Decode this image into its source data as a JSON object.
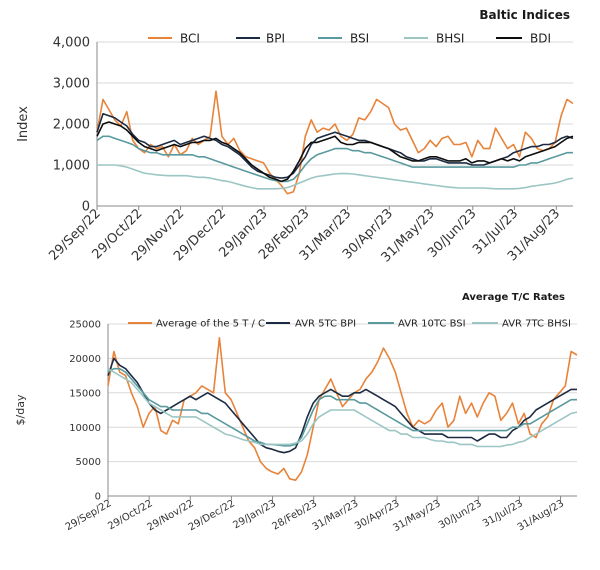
{
  "chart_data": [
    {
      "type": "line",
      "title": "Baltic Indices",
      "ylabel": "Index",
      "xlabel": "",
      "ylim": [
        0,
        4000
      ],
      "y_ticks": [
        "0",
        "1,000",
        "2,000",
        "3,000",
        "4,000"
      ],
      "x_ticks": [
        "29/Sep/22",
        "29/Oct/22",
        "29/Nov/22",
        "29/Dec/22",
        "29/Jan/23",
        "28/Feb/23",
        "31/Mar/23",
        "30/Apr/23",
        "31/May/23",
        "30/Jun/23",
        "31/Jul/23",
        "31/Aug/23"
      ],
      "grid": true,
      "legend_position": "top",
      "series": [
        {
          "name": "BCI",
          "color": "#e8833a",
          "values": [
            1800,
            2600,
            2350,
            2100,
            1950,
            2300,
            1600,
            1400,
            1300,
            1500,
            1400,
            1450,
            1200,
            1500,
            1250,
            1350,
            1650,
            1500,
            1600,
            1700,
            2800,
            1700,
            1500,
            1650,
            1350,
            1200,
            1150,
            1100,
            1050,
            800,
            650,
            500,
            300,
            350,
            800,
            1700,
            2100,
            1800,
            1900,
            1850,
            2000,
            1700,
            1600,
            1750,
            2150,
            2100,
            2300,
            2600,
            2500,
            2400,
            2000,
            1850,
            1900,
            1600,
            1300,
            1400,
            1600,
            1450,
            1650,
            1700,
            1500,
            1500,
            1550,
            1200,
            1600,
            1400,
            1400,
            1900,
            1650,
            1400,
            1500,
            1200,
            1800,
            1650,
            1400,
            1350,
            1400,
            1550,
            2200,
            2600,
            2500
          ]
        },
        {
          "name": "BPI",
          "color": "#1c2b42",
          "values": [
            1800,
            2250,
            2200,
            2150,
            2050,
            1950,
            1750,
            1600,
            1550,
            1450,
            1450,
            1500,
            1550,
            1600,
            1500,
            1550,
            1600,
            1650,
            1700,
            1650,
            1600,
            1500,
            1450,
            1350,
            1250,
            1100,
            950,
            850,
            800,
            750,
            700,
            680,
            700,
            800,
            1000,
            1200,
            1500,
            1650,
            1700,
            1750,
            1800,
            1750,
            1700,
            1650,
            1600,
            1600,
            1550,
            1500,
            1450,
            1400,
            1350,
            1300,
            1200,
            1150,
            1100,
            1100,
            1150,
            1150,
            1100,
            1050,
            1050,
            1050,
            1050,
            1000,
            1000,
            1000,
            1050,
            1100,
            1150,
            1200,
            1300,
            1350,
            1400,
            1450,
            1450,
            1500,
            1500,
            1550,
            1650,
            1700,
            1650
          ]
        },
        {
          "name": "BSI",
          "color": "#5a9a9e",
          "values": [
            1600,
            1700,
            1700,
            1650,
            1600,
            1550,
            1500,
            1400,
            1350,
            1300,
            1300,
            1250,
            1250,
            1250,
            1250,
            1250,
            1250,
            1200,
            1200,
            1150,
            1100,
            1050,
            1000,
            950,
            900,
            850,
            800,
            750,
            700,
            650,
            620,
            600,
            600,
            650,
            800,
            1000,
            1150,
            1250,
            1300,
            1350,
            1400,
            1400,
            1400,
            1350,
            1350,
            1300,
            1300,
            1250,
            1200,
            1150,
            1100,
            1050,
            1000,
            950,
            950,
            950,
            950,
            950,
            950,
            950,
            950,
            950,
            950,
            950,
            950,
            950,
            950,
            950,
            950,
            950,
            950,
            1000,
            1000,
            1050,
            1050,
            1100,
            1150,
            1200,
            1250,
            1300,
            1300
          ]
        },
        {
          "name": "BHSI",
          "color": "#9bc6c4",
          "values": [
            1000,
            1000,
            1000,
            1000,
            980,
            950,
            900,
            850,
            800,
            780,
            760,
            750,
            740,
            740,
            740,
            740,
            720,
            700,
            700,
            680,
            650,
            620,
            600,
            560,
            520,
            480,
            450,
            420,
            420,
            420,
            420,
            430,
            450,
            500,
            560,
            620,
            680,
            720,
            740,
            760,
            780,
            790,
            790,
            780,
            760,
            740,
            720,
            700,
            680,
            660,
            640,
            620,
            600,
            580,
            560,
            540,
            520,
            500,
            480,
            460,
            450,
            440,
            440,
            440,
            440,
            440,
            430,
            420,
            420,
            420,
            420,
            430,
            450,
            480,
            500,
            520,
            540,
            560,
            600,
            650,
            680
          ]
        },
        {
          "name": "BDI",
          "color": "#0d0d0d",
          "values": [
            1700,
            2000,
            2050,
            2000,
            1950,
            1850,
            1700,
            1550,
            1450,
            1400,
            1350,
            1400,
            1450,
            1500,
            1450,
            1500,
            1550,
            1550,
            1600,
            1600,
            1650,
            1550,
            1500,
            1400,
            1300,
            1150,
            1000,
            900,
            800,
            700,
            650,
            600,
            650,
            850,
            1100,
            1400,
            1550,
            1550,
            1600,
            1650,
            1700,
            1550,
            1500,
            1500,
            1550,
            1550,
            1550,
            1500,
            1450,
            1400,
            1300,
            1200,
            1150,
            1100,
            1100,
            1150,
            1200,
            1200,
            1150,
            1100,
            1100,
            1100,
            1150,
            1050,
            1100,
            1100,
            1050,
            1100,
            1150,
            1100,
            1150,
            1100,
            1200,
            1250,
            1300,
            1350,
            1400,
            1450,
            1550,
            1650,
            1700
          ]
        }
      ]
    },
    {
      "type": "line",
      "title": "Average T/C Rates",
      "ylabel": "$/day",
      "xlabel": "",
      "ylim": [
        0,
        25000
      ],
      "y_ticks": [
        "0",
        "5000",
        "10000",
        "15000",
        "20000",
        "25000"
      ],
      "x_ticks": [
        "29/Sep/22",
        "29/Oct/22",
        "29/Nov/22",
        "29/Dec/22",
        "29/Jan/23",
        "28/Feb/23",
        "31/Mar/23",
        "30/Apr/23",
        "31/May/23",
        "30/Jun/23",
        "31/Jul/23",
        "31/Aug/23"
      ],
      "grid": true,
      "legend_position": "top",
      "series": [
        {
          "name": "Average of the 5 T / C",
          "color": "#e8833a",
          "values": [
            16000,
            21000,
            18000,
            17500,
            15000,
            13000,
            10000,
            12000,
            13000,
            9500,
            9000,
            11000,
            10500,
            14000,
            14500,
            15000,
            16000,
            15500,
            15000,
            23000,
            15000,
            14000,
            12000,
            10000,
            8000,
            7000,
            5000,
            4000,
            3500,
            3200,
            4000,
            2500,
            2300,
            3500,
            6000,
            10000,
            14000,
            15500,
            17000,
            15000,
            13000,
            14000,
            15000,
            15500,
            17000,
            18000,
            19500,
            21500,
            20000,
            18000,
            15000,
            12000,
            10000,
            11000,
            10500,
            11000,
            12500,
            13500,
            10000,
            11000,
            14500,
            12000,
            13500,
            11500,
            13500,
            15000,
            14500,
            11000,
            12000,
            13500,
            10500,
            12000,
            9000,
            8500,
            10500,
            11500,
            14000,
            15000,
            16000,
            21000,
            20500
          ]
        },
        {
          "name": "AVR 5TC BPI",
          "color": "#1c2b42",
          "values": [
            17500,
            20000,
            19000,
            18500,
            17500,
            16500,
            15000,
            13500,
            12500,
            12000,
            12500,
            13000,
            13500,
            14000,
            14500,
            14000,
            14500,
            15000,
            14500,
            14000,
            13500,
            12500,
            11500,
            10500,
            9500,
            8500,
            7500,
            7000,
            6800,
            6500,
            6300,
            6500,
            7000,
            9000,
            11500,
            13500,
            14500,
            15000,
            15500,
            15000,
            14500,
            14500,
            15000,
            15000,
            15500,
            15000,
            14500,
            14000,
            13500,
            13000,
            12000,
            11000,
            10000,
            9500,
            9000,
            9000,
            9000,
            9000,
            8500,
            8500,
            8500,
            8500,
            8500,
            8000,
            8500,
            9000,
            9000,
            8500,
            8500,
            9500,
            10000,
            11000,
            11500,
            12500,
            13000,
            13500,
            14000,
            14500,
            15000,
            15500,
            15500
          ]
        },
        {
          "name": "AVR 10TC BSI",
          "color": "#5a9a9e",
          "values": [
            18000,
            18500,
            18500,
            18000,
            17000,
            16000,
            15000,
            14000,
            13500,
            13000,
            13000,
            12500,
            12500,
            12500,
            12500,
            12500,
            12000,
            12000,
            11500,
            11000,
            10500,
            10000,
            9500,
            9000,
            8500,
            8000,
            7800,
            7500,
            7500,
            7400,
            7300,
            7300,
            7500,
            8500,
            10500,
            12500,
            14000,
            14500,
            14500,
            14000,
            14000,
            14000,
            14000,
            13500,
            13500,
            13000,
            12500,
            12000,
            11500,
            11000,
            10500,
            10000,
            9500,
            9500,
            9500,
            9500,
            9500,
            9500,
            9500,
            9500,
            9500,
            9500,
            9500,
            9500,
            9500,
            9500,
            9500,
            9500,
            9500,
            10000,
            10000,
            10500,
            10500,
            11000,
            11500,
            12000,
            12500,
            13000,
            13500,
            14000,
            14000
          ]
        },
        {
          "name": "AVR 7TC BHSI",
          "color": "#9bc6c4",
          "values": [
            18500,
            18000,
            17500,
            17000,
            16500,
            15500,
            14500,
            13500,
            13000,
            12500,
            12000,
            11500,
            11500,
            11500,
            11500,
            11500,
            11000,
            10500,
            10000,
            9500,
            9000,
            8800,
            8500,
            8200,
            8000,
            7800,
            7500,
            7500,
            7500,
            7500,
            7500,
            7500,
            7700,
            8000,
            9000,
            10500,
            11500,
            12000,
            12500,
            12500,
            12500,
            12500,
            12500,
            12000,
            11500,
            11000,
            10500,
            10000,
            9500,
            9500,
            9000,
            9000,
            8500,
            8500,
            8500,
            8200,
            8000,
            8000,
            7800,
            7800,
            7500,
            7500,
            7500,
            7200,
            7200,
            7200,
            7200,
            7200,
            7400,
            7500,
            7800,
            8000,
            8500,
            9000,
            9500,
            10000,
            10500,
            11000,
            11500,
            12000,
            12200
          ]
        }
      ]
    }
  ]
}
